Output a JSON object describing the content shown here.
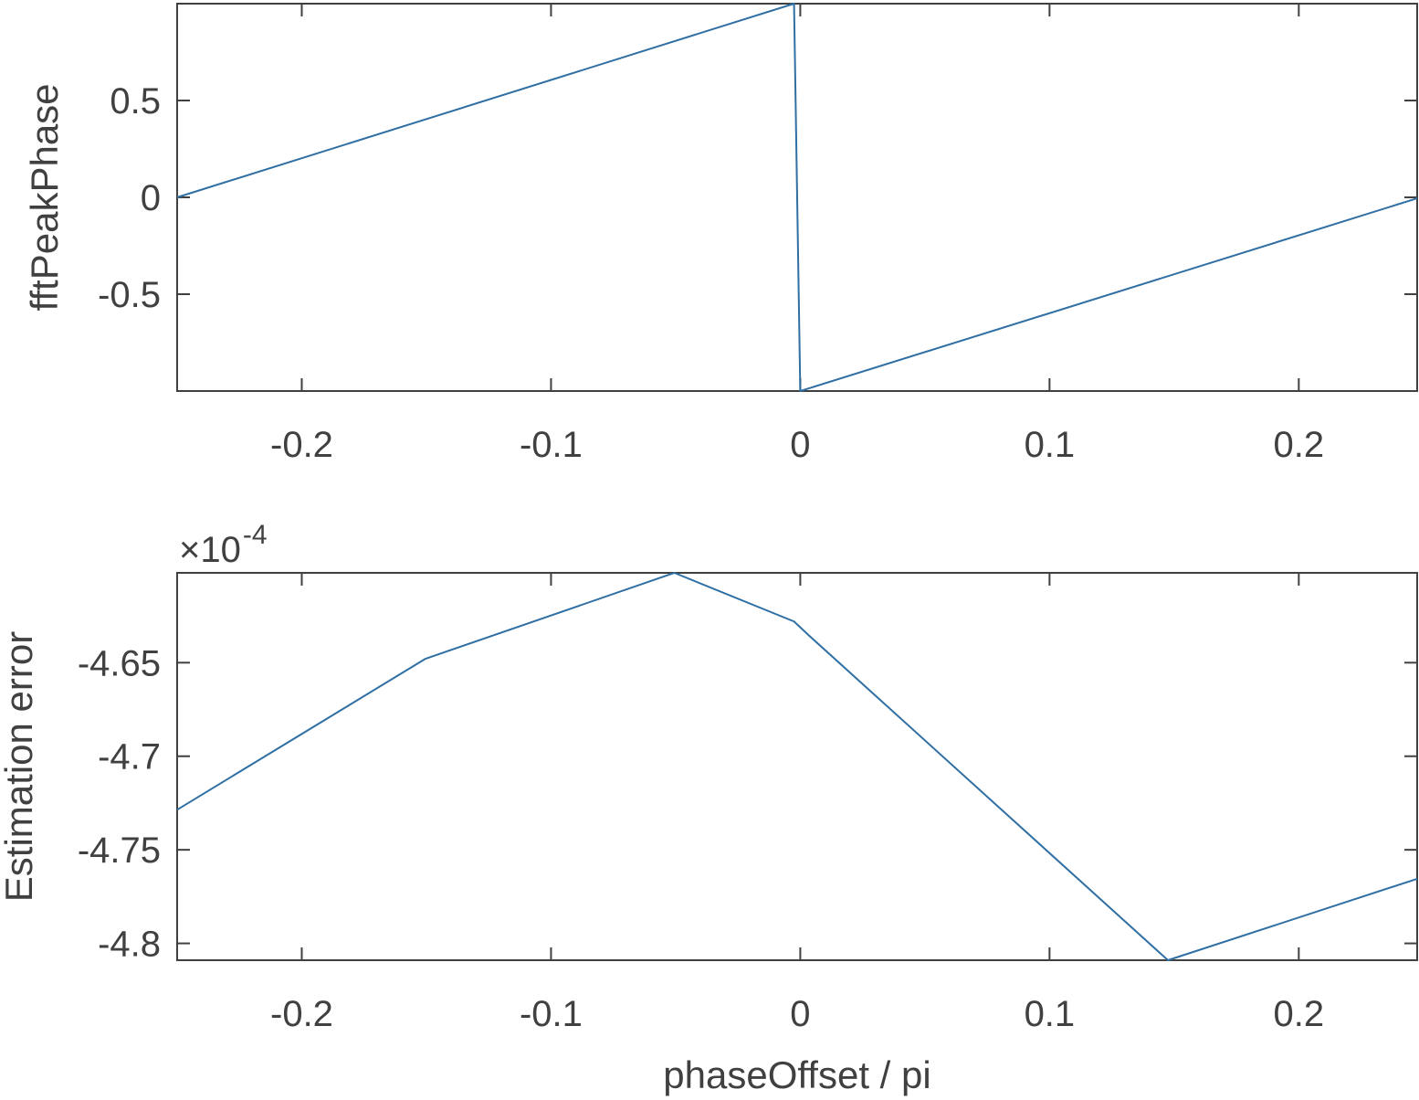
{
  "chart_data": [
    {
      "type": "line",
      "title": "",
      "xlabel": "",
      "ylabel": "fftPeakPhase",
      "xlim": [
        -0.25,
        0.2475
      ],
      "ylim": [
        -1,
        1
      ],
      "x_ticks": [
        -0.2,
        -0.1,
        0,
        0.1,
        0.2
      ],
      "x_tick_labels": [
        "-0.2",
        "-0.1",
        "0",
        "0.1",
        "0.2"
      ],
      "y_ticks": [
        0.5,
        0,
        -0.5
      ],
      "y_tick_labels": [
        "0.5",
        "0",
        "-0.5"
      ],
      "grid": false,
      "line_color": "#2f6fa3",
      "series": [
        {
          "x": [
            -0.25,
            -0.0025,
            0.0,
            0.2475
          ],
          "y": [
            0.0,
            1.0,
            -1.0,
            -0.0051
          ]
        }
      ]
    },
    {
      "type": "line",
      "title": "",
      "xlabel": "phaseOffset / pi",
      "ylabel": "Estimation error",
      "xlim": [
        -0.25,
        0.2475
      ],
      "ylim": [
        -4.809,
        -4.602
      ],
      "y_multiplier": "×10",
      "y_multiplier_exponent": "-4",
      "x_ticks": [
        -0.2,
        -0.1,
        0,
        0.1,
        0.2
      ],
      "x_tick_labels": [
        "-0.2",
        "-0.1",
        "0",
        "0.1",
        "0.2"
      ],
      "y_ticks": [
        -4.65,
        -4.7,
        -4.75,
        -4.8
      ],
      "y_tick_labels": [
        "-4.65",
        "-4.7",
        "-4.75",
        "-4.8"
      ],
      "grid": false,
      "line_color": "#2f6fa3",
      "series": [
        {
          "x": [
            -0.25,
            -0.1505,
            -0.0505,
            -0.0025,
            0.0035,
            0.1475,
            0.2475
          ],
          "y": [
            -4.7286,
            -4.648,
            -4.602,
            -4.628,
            -4.6355,
            -4.809,
            -4.7655
          ]
        }
      ]
    }
  ]
}
